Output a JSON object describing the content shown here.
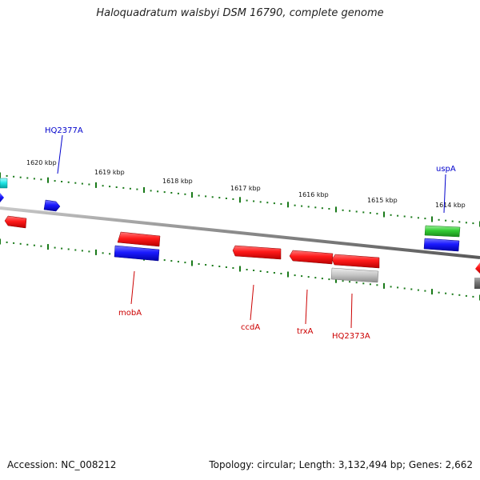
{
  "title": "Haloquadratum walsbyi DSM 16790, complete genome",
  "footer": {
    "accession": "Accession: NC_008212",
    "summary": "Topology: circular; Length: 3,132,494 bp; Genes: 2,662"
  },
  "colors": {
    "backbone": "#8a8a8a",
    "tick": "#1a7a1a",
    "label_red": "#cc0000",
    "label_blue": "#0000cc"
  },
  "scale_labels": [
    "1620 kbp",
    "1619 kbp",
    "1618 kbp",
    "1617 kbp",
    "1616 kbp",
    "1615 kbp",
    "1614 kbp"
  ],
  "gene_labels": [
    {
      "text": "HQ2377A",
      "color": "#0000cc"
    },
    {
      "text": "uspA",
      "color": "#0000cc"
    },
    {
      "text": "mobA",
      "color": "#cc0000"
    },
    {
      "text": "ccdA",
      "color": "#cc0000"
    },
    {
      "text": "trxA",
      "color": "#cc0000"
    },
    {
      "text": "HQ2373A",
      "color": "#cc0000"
    }
  ]
}
